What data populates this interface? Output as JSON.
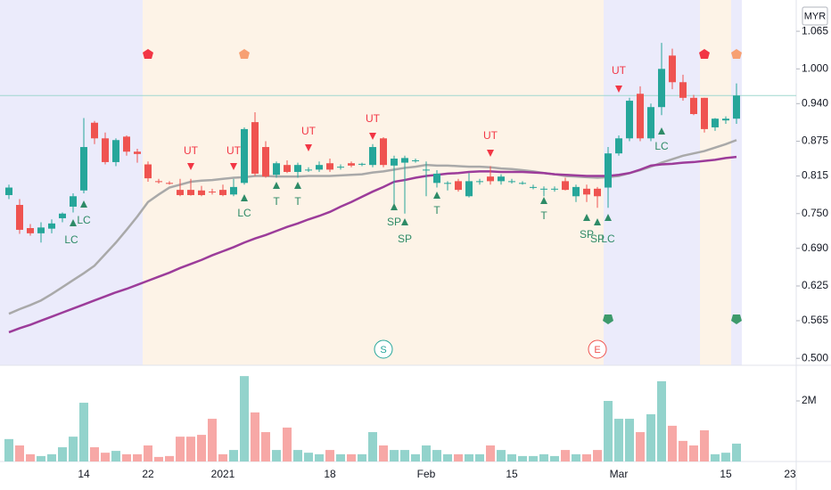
{
  "chart_data": {
    "type": "candlestick",
    "currency": "MYR",
    "categories": [
      null,
      null,
      null,
      null,
      null,
      null,
      null,
      "14",
      null,
      null,
      null,
      null,
      null,
      "22",
      null,
      null,
      null,
      null,
      null,
      null,
      "2021",
      null,
      null,
      null,
      null,
      null,
      null,
      null,
      null,
      null,
      "18",
      null,
      null,
      null,
      null,
      null,
      null,
      null,
      null,
      "Feb",
      null,
      null,
      null,
      null,
      null,
      null,
      null,
      "15",
      null,
      null,
      null,
      null,
      null,
      null,
      null,
      null,
      null,
      "Mar",
      null,
      null,
      null,
      null,
      null,
      null,
      null,
      null,
      null,
      "15",
      null,
      null,
      null,
      null,
      null,
      "23"
    ],
    "open": [
      0.782,
      0.765,
      0.725,
      0.716,
      0.724,
      0.742,
      0.762,
      0.79,
      0.907,
      0.88,
      0.839,
      0.883,
      0.857,
      0.835,
      0.806,
      0.803,
      0.791,
      0.791,
      0.79,
      0.788,
      0.791,
      0.783,
      0.803,
      0.908,
      0.865,
      0.817,
      0.834,
      0.822,
      0.826,
      0.826,
      0.837,
      0.831,
      0.837,
      0.836,
      0.834,
      0.88,
      0.833,
      0.838,
      0.842,
      0.826,
      0.803,
      0.803,
      0.806,
      0.78,
      0.806,
      0.814,
      0.806,
      0.806,
      0.803,
      0.796,
      0.793,
      0.793,
      0.806,
      0.78,
      0.793,
      0.793,
      0.795,
      0.854,
      0.88,
      0.957,
      0.88,
      0.934,
      1.023,
      0.977,
      0.95,
      0.95,
      0.899,
      0.911,
      0.914,
      null,
      null,
      null,
      null,
      null
    ],
    "high": [
      0.8,
      0.775,
      0.732,
      0.735,
      0.74,
      0.752,
      0.785,
      0.915,
      0.91,
      0.89,
      0.88,
      0.885,
      0.862,
      0.84,
      0.81,
      0.806,
      0.81,
      0.81,
      0.798,
      0.793,
      0.8,
      0.81,
      0.899,
      0.925,
      0.875,
      0.84,
      0.842,
      0.838,
      0.83,
      0.84,
      0.845,
      0.835,
      0.84,
      0.838,
      0.87,
      0.882,
      0.85,
      0.85,
      0.845,
      0.84,
      0.825,
      0.806,
      0.81,
      0.82,
      0.81,
      0.832,
      0.818,
      0.81,
      0.806,
      0.8,
      0.797,
      0.797,
      0.812,
      0.8,
      0.8,
      0.796,
      0.865,
      0.885,
      0.95,
      0.97,
      0.94,
      1.045,
      1.035,
      0.99,
      0.955,
      0.95,
      0.915,
      0.918,
      0.975,
      null,
      null,
      null,
      null,
      null
    ],
    "low": [
      0.775,
      0.715,
      0.712,
      0.7,
      0.716,
      0.735,
      0.752,
      0.785,
      0.87,
      0.835,
      0.832,
      0.85,
      0.838,
      0.805,
      0.802,
      0.8,
      0.78,
      0.781,
      0.78,
      0.783,
      0.78,
      0.78,
      0.8,
      0.815,
      0.812,
      0.812,
      0.82,
      0.812,
      0.822,
      0.822,
      0.822,
      0.826,
      0.83,
      0.832,
      0.83,
      0.83,
      0.76,
      0.75,
      0.838,
      0.78,
      0.795,
      0.79,
      0.788,
      0.778,
      0.8,
      0.8,
      0.8,
      0.802,
      0.8,
      0.792,
      0.78,
      0.788,
      0.79,
      0.77,
      0.77,
      0.76,
      0.76,
      0.85,
      0.875,
      0.875,
      0.875,
      0.92,
      0.965,
      0.945,
      0.92,
      0.89,
      0.893,
      0.905,
      0.905,
      null,
      null,
      null,
      null,
      null
    ],
    "close": [
      0.795,
      0.722,
      0.716,
      0.726,
      0.733,
      0.75,
      0.78,
      0.865,
      0.88,
      0.839,
      0.877,
      0.857,
      0.853,
      0.811,
      0.805,
      0.802,
      0.782,
      0.782,
      0.782,
      0.787,
      0.782,
      0.796,
      0.896,
      0.819,
      0.814,
      0.837,
      0.822,
      0.834,
      0.826,
      0.834,
      0.826,
      0.831,
      0.833,
      0.836,
      0.865,
      0.834,
      0.845,
      0.846,
      0.842,
      0.826,
      0.819,
      0.803,
      0.791,
      0.806,
      0.806,
      0.806,
      0.814,
      0.806,
      0.803,
      0.796,
      0.793,
      0.793,
      0.791,
      0.796,
      0.783,
      0.78,
      0.854,
      0.88,
      0.945,
      0.88,
      0.934,
      1.0,
      0.977,
      0.95,
      0.922,
      0.896,
      0.914,
      0.914,
      0.954,
      null,
      null,
      null,
      null,
      null
    ],
    "up_color": "#26a69a",
    "down_color": "#ef5350",
    "price_line_color": "#9fd8cf",
    "ylim": [
      0.488,
      1.119
    ],
    "yticks": [
      {
        "value": 0.5,
        "label": "0.500"
      },
      {
        "value": 0.565,
        "label": "0.565"
      },
      {
        "value": 0.625,
        "label": "0.625"
      },
      {
        "value": 0.69,
        "label": "0.690"
      },
      {
        "value": 0.75,
        "label": "0.750"
      },
      {
        "value": 0.815,
        "label": "0.815"
      },
      {
        "value": 0.875,
        "label": "0.875"
      },
      {
        "value": 0.94,
        "label": "0.940"
      },
      {
        "value": 1.0,
        "label": "1.000"
      },
      {
        "value": 1.065,
        "label": "1.065"
      }
    ],
    "overlays": [
      {
        "color": "#a9a9a9",
        "values": [
          0.577,
          0.585,
          0.592,
          0.6,
          0.611,
          0.623,
          0.635,
          0.647,
          0.66,
          0.68,
          0.7,
          0.722,
          0.745,
          0.77,
          0.783,
          0.795,
          0.8,
          0.805,
          0.807,
          0.808,
          0.81,
          0.812,
          0.813,
          0.815,
          0.815,
          0.814,
          0.814,
          0.814,
          0.815,
          0.815,
          0.815,
          0.816,
          0.817,
          0.818,
          0.821,
          0.823,
          0.826,
          0.829,
          0.831,
          0.834,
          0.833,
          0.833,
          0.832,
          0.831,
          0.831,
          0.83,
          0.828,
          0.827,
          0.825,
          0.823,
          0.82,
          0.818,
          0.815,
          0.814,
          0.813,
          0.812,
          0.813,
          0.815,
          0.82,
          0.825,
          0.831,
          0.838,
          0.844,
          0.85,
          0.854,
          0.858,
          0.864,
          0.87,
          0.877,
          null,
          null,
          null,
          null,
          null
        ]
      },
      {
        "color": "#9c3c9a",
        "values": [
          0.545,
          0.552,
          0.558,
          0.565,
          0.572,
          0.579,
          0.586,
          0.593,
          0.6,
          0.607,
          0.614,
          0.62,
          0.627,
          0.634,
          0.641,
          0.648,
          0.656,
          0.663,
          0.67,
          0.678,
          0.685,
          0.692,
          0.7,
          0.707,
          0.713,
          0.72,
          0.727,
          0.733,
          0.74,
          0.746,
          0.753,
          0.762,
          0.77,
          0.779,
          0.788,
          0.796,
          0.805,
          0.808,
          0.812,
          0.815,
          0.817,
          0.819,
          0.82,
          0.822,
          0.823,
          0.823,
          0.822,
          0.822,
          0.822,
          0.821,
          0.82,
          0.818,
          0.817,
          0.816,
          0.815,
          0.815,
          0.815,
          0.817,
          0.82,
          0.826,
          0.833,
          0.835,
          0.836,
          0.838,
          0.839,
          0.841,
          0.843,
          0.846,
          0.848,
          null,
          null,
          null,
          null,
          null
        ]
      }
    ],
    "volume": {
      "up_color": "#93d3cc",
      "down_color": "#f7a8a6",
      "values": [
        740000,
        530000,
        240000,
        180000,
        240000,
        470000,
        820000,
        1940000,
        470000,
        290000,
        350000,
        240000,
        240000,
        530000,
        150000,
        180000,
        820000,
        820000,
        880000,
        1410000,
        240000,
        380000,
        2820000,
        1620000,
        970000,
        380000,
        1120000,
        380000,
        290000,
        240000,
        380000,
        240000,
        240000,
        240000,
        970000,
        530000,
        380000,
        380000,
        240000,
        530000,
        380000,
        240000,
        240000,
        240000,
        240000,
        530000,
        380000,
        240000,
        180000,
        180000,
        240000,
        180000,
        380000,
        240000,
        240000,
        380000,
        2000000,
        1410000,
        1410000,
        970000,
        1560000,
        2650000,
        1180000,
        680000,
        530000,
        1030000,
        240000,
        290000,
        590000,
        null,
        null,
        null,
        null,
        null
      ],
      "ylim": [
        0,
        3030000
      ],
      "yticks": [
        {
          "value": 2000000,
          "label": "2M"
        }
      ]
    },
    "signals": [
      {
        "text": "LC",
        "color": "#2e8b67"
      },
      {
        "text": "LC",
        "color": "#2e8b67"
      },
      {
        "text": "UT",
        "color": "#f23645"
      },
      {
        "text": "UT",
        "color": "#f23645"
      },
      {
        "text": "LC",
        "color": "#2e8b67"
      },
      {
        "text": "T",
        "color": "#2e8b67"
      },
      {
        "text": "T",
        "color": "#2e8b67"
      },
      {
        "text": "UT",
        "color": "#f23645"
      },
      {
        "text": "UT",
        "color": "#f23645"
      },
      {
        "text": "SP",
        "color": "#2e8b67"
      },
      {
        "text": "SP",
        "color": "#2e8b67"
      },
      {
        "text": "T",
        "color": "#2e8b67"
      },
      {
        "text": "UT",
        "color": "#f23645"
      },
      {
        "text": "T",
        "color": "#2e8b67"
      },
      {
        "text": "SP",
        "color": "#2e8b67"
      },
      {
        "text": "SP",
        "color": "#2e8b67"
      },
      {
        "text": "LC",
        "color": "#2e8b67"
      },
      {
        "text": "UT",
        "color": "#f23645"
      },
      {
        "text": "LC",
        "color": "#2e8b67"
      }
    ],
    "events": [
      {
        "text": "S",
        "color": "#26a69a"
      },
      {
        "text": "E",
        "color": "#ef5350"
      }
    ]
  }
}
